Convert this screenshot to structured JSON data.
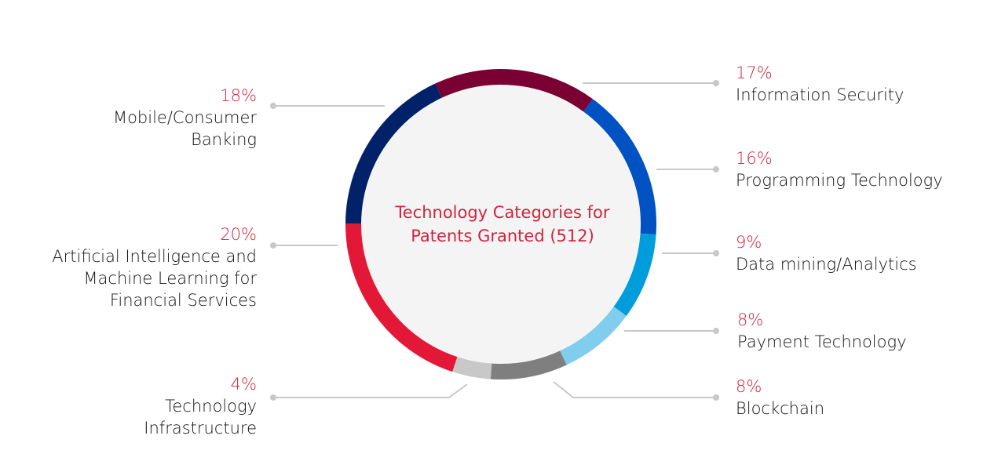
{
  "chart_data": {
    "type": "donut",
    "title": "Technology Categories for Patents Granted (512)",
    "categories": [
      "Information Security",
      "Programming Technology",
      "Data mining/Analytics",
      "Payment Technology",
      "Blockchain",
      "Technology Infrastructure",
      "Artificial Intelligence and Machine Learning for Financial Services",
      "Mobile/Consumer Banking"
    ],
    "values": [
      17,
      16,
      9,
      8,
      8,
      4,
      20,
      18
    ],
    "value_labels": [
      "17%",
      "16%",
      "9%",
      "8%",
      "8%",
      "4%",
      "20%",
      "18%"
    ],
    "colors": [
      "#7a0033",
      "#0052c2",
      "#009ddc",
      "#80cdee",
      "#7f7f7f",
      "#c8c8c8",
      "#e31837",
      "#012169"
    ]
  }
}
